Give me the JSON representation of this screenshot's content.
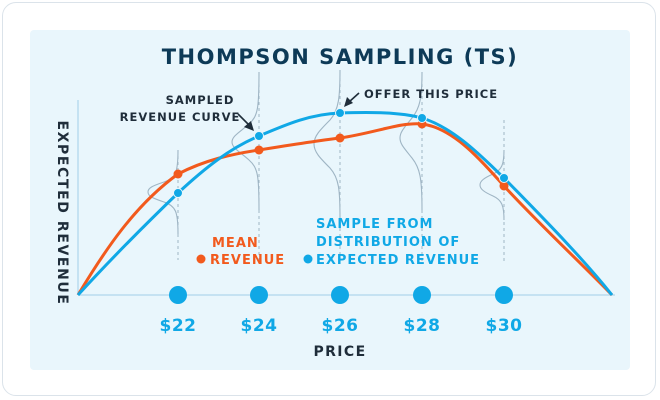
{
  "title": "THOMPSON SAMPLING (TS)",
  "y_axis_label": "EXPECTED REVENUE",
  "x_axis_label": "PRICE",
  "price_ticks": [
    "$22",
    "$24",
    "$26",
    "$28",
    "$30"
  ],
  "annotations": {
    "sampled_curve_line1": "SAMPLED",
    "sampled_curve_line2": "REVENUE CURVE",
    "offer_price": "OFFER THIS PRICE"
  },
  "legend": {
    "mean_line1": "MEAN",
    "mean_line2": "REVENUE",
    "sample_line1": "SAMPLE FROM",
    "sample_line2": "DISTRIBUTION OF",
    "sample_line3": "EXPECTED REVENUE"
  },
  "colors": {
    "title": "#0d3a57",
    "mean_revenue": "#f25a1d",
    "sampled_revenue": "#10a8e6",
    "panel_background": "#e9f6fc"
  }
}
